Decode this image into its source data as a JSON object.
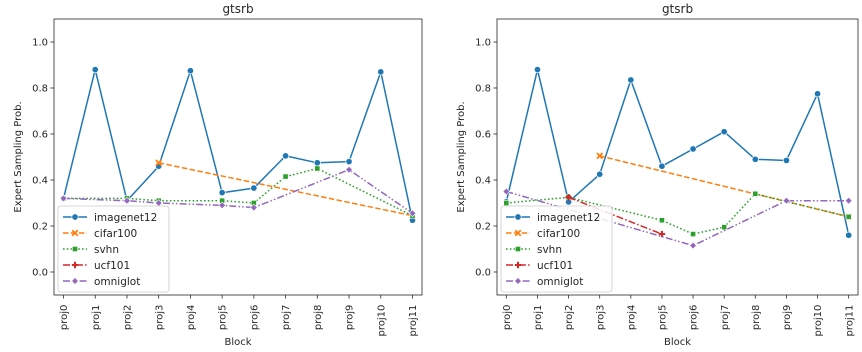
{
  "colors": {
    "imagenet12": "#1f77b4",
    "cifar100": "#ff7f0e",
    "svhn": "#2ca02c",
    "ucf101": "#d62728",
    "omniglot": "#9467bd"
  },
  "chart_data": [
    {
      "type": "line",
      "title": "gtsrb",
      "xlabel": "Block",
      "ylabel": "Expert Sampling Prob.",
      "ylim": [
        -0.1,
        1.1
      ],
      "yticks": [
        "0.0",
        "0.2",
        "0.4",
        "0.6",
        "0.8",
        "1.0"
      ],
      "grid": false,
      "legend_position": "bottom-left",
      "categories": [
        "proj0",
        "proj1",
        "proj2",
        "proj3",
        "proj4",
        "proj5",
        "proj6",
        "proj7",
        "proj8",
        "proj9",
        "proj10",
        "proj11"
      ],
      "series": [
        {
          "name": "imagenet12",
          "marker": "circle",
          "dash": "solid",
          "values": [
            0.32,
            0.88,
            0.31,
            0.46,
            0.875,
            0.345,
            0.365,
            0.505,
            0.475,
            0.48,
            0.87,
            0.225
          ]
        },
        {
          "name": "cifar100",
          "marker": "x",
          "dash": "dashed",
          "values": [
            null,
            null,
            null,
            0.475,
            null,
            null,
            null,
            null,
            null,
            null,
            null,
            0.245
          ]
        },
        {
          "name": "svhn",
          "marker": "square",
          "dash": "dotted",
          "values": [
            0.32,
            null,
            0.32,
            0.31,
            null,
            0.31,
            0.3,
            0.415,
            0.45,
            null,
            null,
            0.245
          ]
        },
        {
          "name": "ucf101",
          "marker": "plus",
          "dash": "dashdot",
          "values": [
            null,
            null,
            null,
            null,
            null,
            null,
            null,
            null,
            null,
            null,
            null,
            null
          ]
        },
        {
          "name": "omniglot",
          "marker": "diamond",
          "dash": "dashdotdot",
          "values": [
            0.32,
            null,
            0.31,
            0.3,
            null,
            0.29,
            0.28,
            null,
            null,
            0.445,
            null,
            0.255
          ]
        }
      ]
    },
    {
      "type": "line",
      "title": "gtsrb",
      "xlabel": "Block",
      "ylabel": "Expert Sampling Prob.",
      "ylim": [
        -0.1,
        1.1
      ],
      "yticks": [
        "0.0",
        "0.2",
        "0.4",
        "0.6",
        "0.8",
        "1.0"
      ],
      "grid": false,
      "legend_position": "bottom-left",
      "categories": [
        "proj0",
        "proj1",
        "proj2",
        "proj3",
        "proj4",
        "proj5",
        "proj6",
        "proj7",
        "proj8",
        "proj9",
        "proj10",
        "proj11"
      ],
      "series": [
        {
          "name": "imagenet12",
          "marker": "circle",
          "dash": "solid",
          "values": [
            0.305,
            0.88,
            0.305,
            0.425,
            0.835,
            0.46,
            0.535,
            0.61,
            0.49,
            0.485,
            0.775,
            0.16
          ]
        },
        {
          "name": "cifar100",
          "marker": "x",
          "dash": "dashed",
          "values": [
            null,
            null,
            null,
            0.505,
            null,
            null,
            null,
            null,
            null,
            null,
            null,
            0.24
          ]
        },
        {
          "name": "svhn",
          "marker": "square",
          "dash": "dotted",
          "values": [
            0.3,
            null,
            0.325,
            null,
            null,
            0.225,
            0.165,
            0.195,
            0.34,
            null,
            null,
            0.24
          ]
        },
        {
          "name": "ucf101",
          "marker": "plus",
          "dash": "dashdot",
          "values": [
            null,
            null,
            0.325,
            null,
            null,
            0.165,
            null,
            null,
            null,
            null,
            null,
            null
          ]
        },
        {
          "name": "omniglot",
          "marker": "diamond",
          "dash": "dashdotdot",
          "values": [
            0.35,
            null,
            null,
            null,
            null,
            null,
            0.115,
            null,
            null,
            0.31,
            null,
            0.31
          ]
        }
      ]
    }
  ]
}
